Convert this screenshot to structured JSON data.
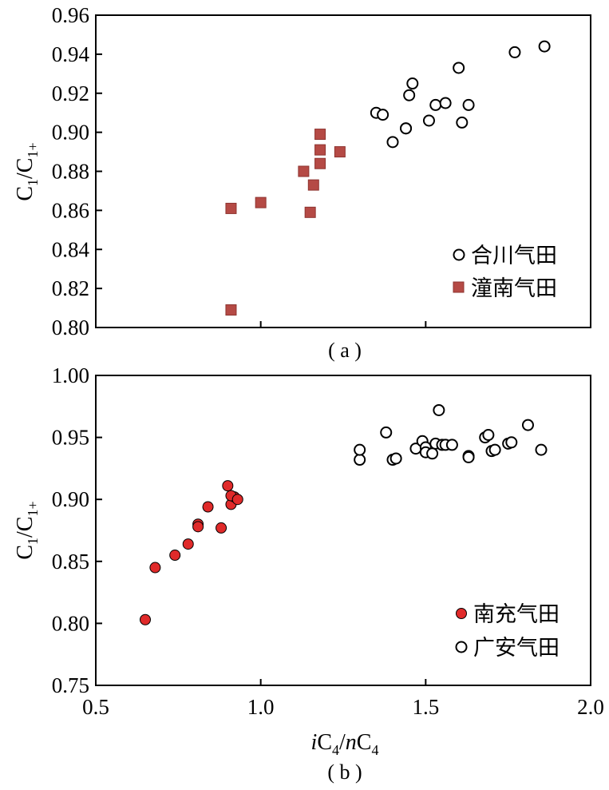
{
  "chart_data": [
    {
      "type": "scatter",
      "panel_label": "( a )",
      "ylabel": {
        "main": "C",
        "sub1": "1",
        "slash": "/C",
        "sub2": "1+"
      },
      "xlim": [
        0.5,
        2.0
      ],
      "ylim": [
        0.8,
        0.96
      ],
      "yticks": [
        "0.80",
        "0.82",
        "0.84",
        "0.86",
        "0.88",
        "0.90",
        "0.92",
        "0.94",
        "0.96"
      ],
      "series": [
        {
          "name": "合川气田",
          "marker": "open-circle",
          "color": "#000000",
          "points": [
            [
              1.35,
              0.91
            ],
            [
              1.37,
              0.909
            ],
            [
              1.4,
              0.895
            ],
            [
              1.44,
              0.902
            ],
            [
              1.44,
              0.902
            ],
            [
              1.45,
              0.919
            ],
            [
              1.46,
              0.925
            ],
            [
              1.51,
              0.906
            ],
            [
              1.53,
              0.914
            ],
            [
              1.56,
              0.915
            ],
            [
              1.6,
              0.933
            ],
            [
              1.61,
              0.905
            ],
            [
              1.63,
              0.914
            ],
            [
              1.77,
              0.941
            ],
            [
              1.86,
              0.944
            ]
          ]
        },
        {
          "name": "潼南气田",
          "marker": "filled-square",
          "color": "#b54a45",
          "points": [
            [
              0.91,
              0.861
            ],
            [
              0.91,
              0.809
            ],
            [
              1.0,
              0.864
            ],
            [
              1.13,
              0.88
            ],
            [
              1.15,
              0.859
            ],
            [
              1.16,
              0.873
            ],
            [
              1.18,
              0.899
            ],
            [
              1.18,
              0.891
            ],
            [
              1.18,
              0.884
            ],
            [
              1.24,
              0.89
            ]
          ]
        }
      ]
    },
    {
      "type": "scatter",
      "panel_label": "( b )",
      "ylabel": {
        "main": "C",
        "sub1": "1",
        "slash": "/C",
        "sub2": "1+"
      },
      "xlabel": {
        "i": "i",
        "c1": "C",
        "s1": "4",
        "slash": "/",
        "n": "n",
        "c2": "C",
        "s2": "4"
      },
      "xlim": [
        0.5,
        2.0
      ],
      "ylim": [
        0.75,
        1.0
      ],
      "xticks": [
        "0.5",
        "1.0",
        "1.5",
        "2.0"
      ],
      "yticks": [
        "0.75",
        "0.80",
        "0.85",
        "0.90",
        "0.95",
        "1.00"
      ],
      "series": [
        {
          "name": "南充气田",
          "marker": "filled-circle",
          "color": "#e02a2a",
          "points": [
            [
              0.65,
              0.803
            ],
            [
              0.68,
              0.845
            ],
            [
              0.74,
              0.855
            ],
            [
              0.78,
              0.864
            ],
            [
              0.81,
              0.88
            ],
            [
              0.81,
              0.878
            ],
            [
              0.84,
              0.894
            ],
            [
              0.88,
              0.877
            ],
            [
              0.9,
              0.911
            ],
            [
              0.91,
              0.896
            ],
            [
              0.92,
              0.902
            ],
            [
              0.91,
              0.903
            ],
            [
              0.93,
              0.9
            ]
          ]
        },
        {
          "name": "广安气田",
          "marker": "open-circle",
          "color": "#000000",
          "points": [
            [
              1.3,
              0.932
            ],
            [
              1.3,
              0.94
            ],
            [
              1.38,
              0.954
            ],
            [
              1.4,
              0.932
            ],
            [
              1.41,
              0.933
            ],
            [
              1.47,
              0.941
            ],
            [
              1.49,
              0.947
            ],
            [
              1.5,
              0.942
            ],
            [
              1.5,
              0.938
            ],
            [
              1.52,
              0.937
            ],
            [
              1.53,
              0.945
            ],
            [
              1.54,
              0.972
            ],
            [
              1.55,
              0.944
            ],
            [
              1.56,
              0.944
            ],
            [
              1.58,
              0.944
            ],
            [
              1.63,
              0.935
            ],
            [
              1.63,
              0.934
            ],
            [
              1.68,
              0.95
            ],
            [
              1.69,
              0.952
            ],
            [
              1.7,
              0.939
            ],
            [
              1.71,
              0.94
            ],
            [
              1.75,
              0.945
            ],
            [
              1.76,
              0.946
            ],
            [
              1.81,
              0.96
            ],
            [
              1.85,
              0.94
            ]
          ]
        }
      ]
    }
  ]
}
